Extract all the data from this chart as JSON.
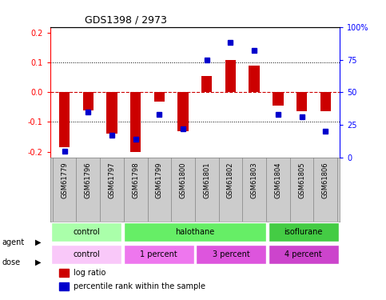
{
  "title": "GDS1398 / 2973",
  "samples": [
    "GSM61779",
    "GSM61796",
    "GSM61797",
    "GSM61798",
    "GSM61799",
    "GSM61800",
    "GSM61801",
    "GSM61802",
    "GSM61803",
    "GSM61804",
    "GSM61805",
    "GSM61806"
  ],
  "log_ratio": [
    -0.185,
    -0.06,
    -0.14,
    -0.2,
    -0.03,
    -0.13,
    0.055,
    0.11,
    0.09,
    -0.045,
    -0.065,
    -0.065
  ],
  "percentile": [
    5,
    35,
    17,
    14,
    33,
    22,
    75,
    88,
    82,
    33,
    31,
    20
  ],
  "bar_color": "#cc0000",
  "dot_color": "#0000cc",
  "zero_line_color": "#cc0000",
  "dotted_line_color": "#000000",
  "ylim": [
    -0.22,
    0.22
  ],
  "yticks_left": [
    -0.2,
    -0.1,
    0.0,
    0.1,
    0.2
  ],
  "yticks_right": [
    0,
    25,
    50,
    75,
    100
  ],
  "yticks_right_labels": [
    "0",
    "25",
    "50",
    "75",
    "100%"
  ],
  "agent_labels": [
    {
      "text": "control",
      "start": 0,
      "end": 3,
      "color": "#aaffaa"
    },
    {
      "text": "halothane",
      "start": 3,
      "end": 9,
      "color": "#66ee66"
    },
    {
      "text": "isoflurane",
      "start": 9,
      "end": 12,
      "color": "#44cc44"
    }
  ],
  "dose_labels": [
    {
      "text": "control",
      "start": 0,
      "end": 3,
      "color": "#f9c8f9"
    },
    {
      "text": "1 percent",
      "start": 3,
      "end": 6,
      "color": "#ee77ee"
    },
    {
      "text": "3 percent",
      "start": 6,
      "end": 9,
      "color": "#dd55dd"
    },
    {
      "text": "4 percent",
      "start": 9,
      "end": 12,
      "color": "#cc44cc"
    }
  ]
}
